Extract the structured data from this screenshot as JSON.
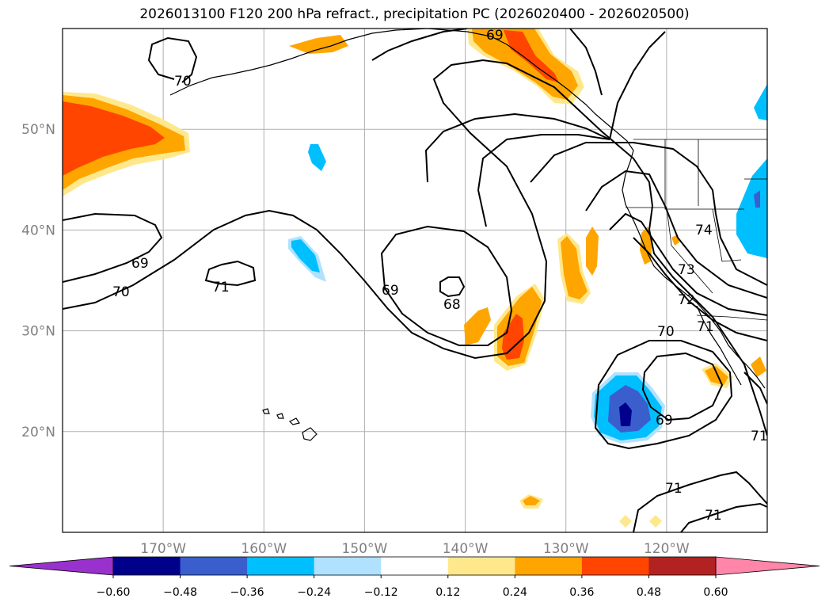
{
  "title": "2026013100 F120 200 hPa refract., precipitation PC (2026020400 - 2026020500)",
  "map": {
    "lon_range": [
      -180,
      -110
    ],
    "lat_range": [
      10,
      60
    ],
    "lon_ticks": [
      {
        "value": -170,
        "label": "170°W"
      },
      {
        "value": -160,
        "label": "160°W"
      },
      {
        "value": -150,
        "label": "150°W"
      },
      {
        "value": -140,
        "label": "140°W"
      },
      {
        "value": -130,
        "label": "130°W"
      },
      {
        "value": -120,
        "label": "120°W"
      }
    ],
    "lat_ticks": [
      {
        "value": 20,
        "label": "20°N"
      },
      {
        "value": 30,
        "label": "30°N"
      },
      {
        "value": 40,
        "label": "40°N"
      },
      {
        "value": 50,
        "label": "50°N"
      }
    ],
    "gridlines": true,
    "contour_labels": [
      "70",
      "69",
      "69",
      "70",
      "71",
      "69",
      "68",
      "74",
      "73",
      "72",
      "71",
      "70",
      "69",
      "71",
      "71",
      "71"
    ]
  },
  "colorbar": {
    "ticks": [
      "−0.60",
      "−0.48",
      "−0.36",
      "−0.24",
      "−0.12",
      "0.12",
      "0.24",
      "0.36",
      "0.48",
      "0.60"
    ],
    "colors": [
      "#9932cc",
      "#00008b",
      "#3a5fcd",
      "#00bfff",
      "#b0e2ff",
      "#ffffff",
      "#ffe88c",
      "#ffa500",
      "#ff4500",
      "#b22222",
      "#ff85a9"
    ]
  }
}
